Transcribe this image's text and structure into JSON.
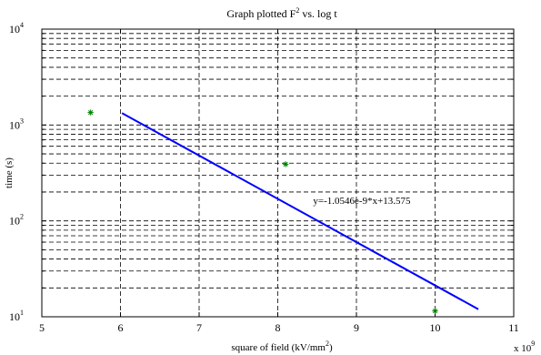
{
  "chart_data": {
    "type": "scatter",
    "title": {
      "main": "Graph plotted F",
      "sup": "2",
      "rest": " vs. log t"
    },
    "xlabel": {
      "main": "square of field (kV/mm",
      "sup": "2",
      "rest": ")"
    },
    "ylabel": "time (s)",
    "x_multiplier": {
      "base": "x 10",
      "exp": "9"
    },
    "x_range": [
      5,
      11
    ],
    "x_ticks": [
      5,
      6,
      7,
      8,
      9,
      10,
      11
    ],
    "y_scale": "log",
    "y_range": [
      10,
      10000
    ],
    "y_ticks": [
      {
        "value": 10,
        "base": "10",
        "exp": "1"
      },
      {
        "value": 100,
        "base": "10",
        "exp": "2"
      },
      {
        "value": 1000,
        "base": "10",
        "exp": "3"
      },
      {
        "value": 10000,
        "base": "10",
        "exp": "4"
      }
    ],
    "grid": true,
    "grid_style": "dashed",
    "series": [
      {
        "type": "scatter",
        "marker": "asterisk",
        "color": "#008000",
        "points": [
          {
            "x": 5.62,
            "y": 1350
          },
          {
            "x": 8.1,
            "y": 390
          },
          {
            "x": 10.0,
            "y": 11.5
          }
        ]
      },
      {
        "type": "line",
        "color": "#0000ff",
        "points": [
          {
            "x": 6.02,
            "y": 1330
          },
          {
            "x": 10.55,
            "y": 12
          }
        ]
      }
    ],
    "annotation": {
      "text": "y=-1.0546e-9*x+13.575",
      "x": 8.45,
      "y": 150
    }
  }
}
